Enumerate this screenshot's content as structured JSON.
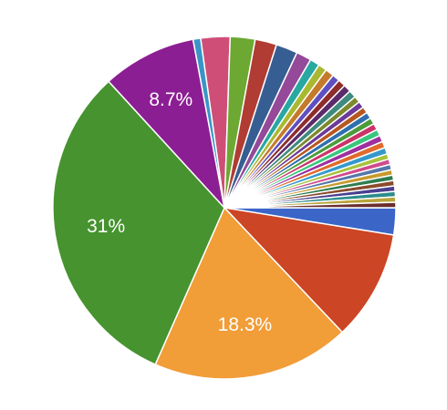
{
  "chart_data": {
    "type": "pie",
    "start_angle": 90,
    "values": [
      2.5,
      10.2,
      18.3,
      31,
      8.7,
      0.7,
      2.7,
      2.3,
      2.0,
      2.0,
      1.4,
      0.9,
      0.8,
      0.8,
      0.7,
      0.7,
      0.7,
      0.7,
      0.6,
      0.6,
      0.6,
      0.6,
      0.6,
      0.6,
      0.6,
      0.6,
      0.6,
      0.6,
      0.5,
      0.5,
      0.5,
      0.5,
      0.5,
      0.5,
      0.5,
      0.5,
      0.5,
      0.5
    ],
    "value_labels": [
      null,
      null,
      "18.3%",
      "31%",
      "8.7%",
      null,
      null,
      null,
      null,
      null,
      null,
      null,
      null,
      null,
      null,
      null,
      null,
      null,
      null,
      null,
      null,
      null,
      null,
      null,
      null,
      null,
      null,
      null,
      null,
      null,
      null,
      null,
      null,
      null,
      null,
      null,
      null,
      null
    ],
    "colors": [
      "#3b66c8",
      "#cc4524",
      "#f19d38",
      "#46932f",
      "#8c1e93",
      "#3a95c7",
      "#cf4e77",
      "#6da832",
      "#b03c33",
      "#375e92",
      "#944999",
      "#27a8a0",
      "#a9b831",
      "#c57a2b",
      "#5f4fc1",
      "#8e2c2c",
      "#5c2a6a",
      "#3f8a7e",
      "#7b8a2d",
      "#6b3a9a",
      "#b7571f",
      "#2f6fb0",
      "#4c9b3c",
      "#cc3366",
      "#38c77c",
      "#9e2fa0",
      "#e06a2d",
      "#3399cc",
      "#a6c33a",
      "#d14a8a",
      "#5577aa",
      "#c79a2a",
      "#2e7d4f",
      "#8a4b2c",
      "#4a3f8f",
      "#2c8c8c",
      "#b8a43a",
      "#6a2f2f"
    ]
  }
}
